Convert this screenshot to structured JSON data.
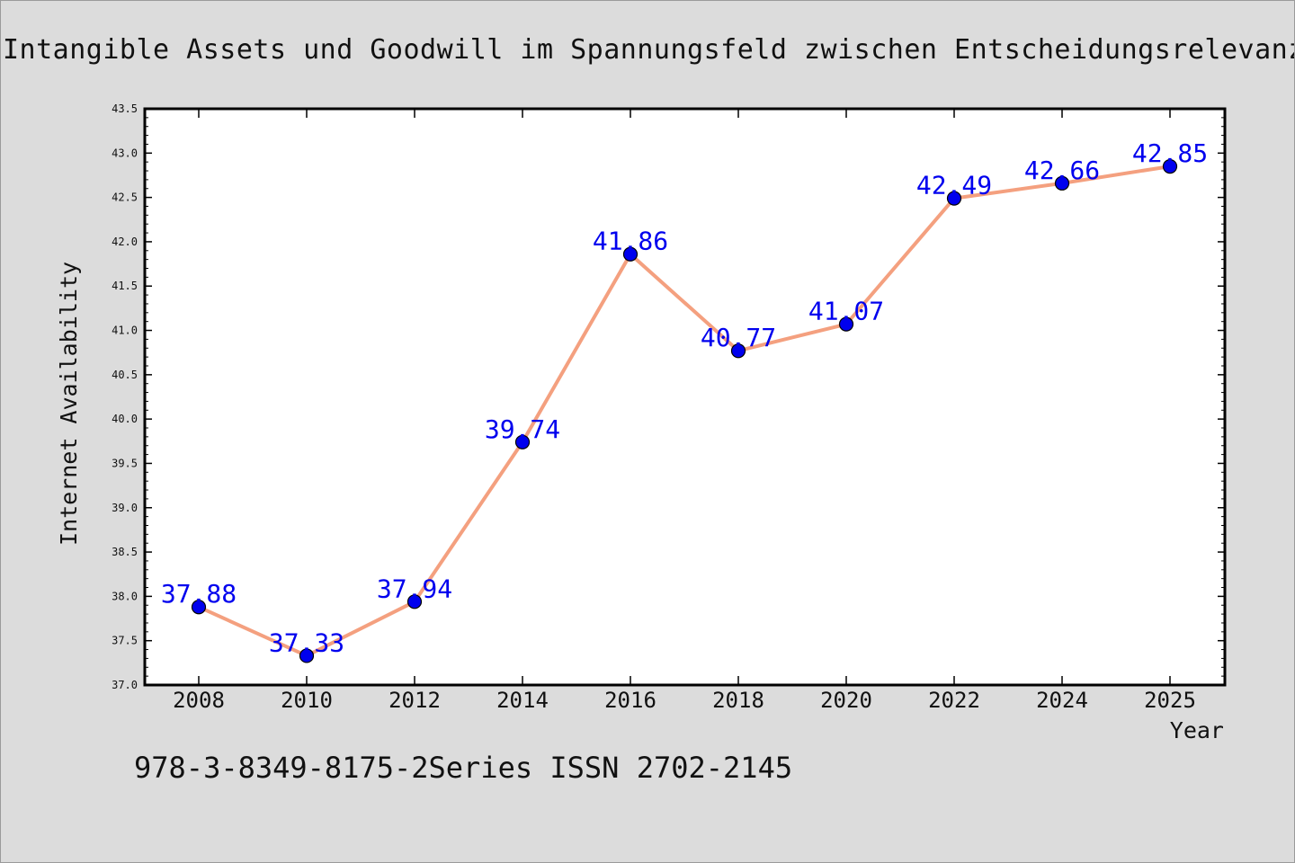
{
  "chart_data": {
    "type": "line",
    "title": "Intangible Assets und Goodwill im Spannungsfeld zwischen Entscheidungsrelevanz u",
    "xlabel": "Year",
    "ylabel": "Internet Availability",
    "categories": [
      "2008",
      "2010",
      "2012",
      "2014",
      "2016",
      "2018",
      "2020",
      "2022",
      "2024",
      "2025"
    ],
    "series": [
      {
        "values": [
          37.88,
          37.33,
          37.94,
          39.74,
          41.86,
          40.77,
          41.07,
          42.49,
          42.66,
          42.85
        ]
      }
    ],
    "data_labels": [
      "37.88",
      "37.33",
      "37.94",
      "39.74",
      "41.86",
      "40.77",
      "41.07",
      "42.49",
      "42.66",
      "42.85"
    ],
    "ylim": [
      37.0,
      43.5
    ],
    "yticks": [
      "37.0",
      "37.5",
      "38.0",
      "38.5",
      "39.0",
      "39.5",
      "40.0",
      "40.5",
      "41.0",
      "41.5",
      "42.0",
      "42.5",
      "43.0",
      "43.5"
    ],
    "grid": false,
    "legend": "none",
    "colors": {
      "line": "#f4a07f",
      "marker": "#0000ee",
      "label": "#0000ee"
    }
  },
  "footer": {
    "text": "978-3-8349-8175-2Series ISSN 2702-2145"
  }
}
